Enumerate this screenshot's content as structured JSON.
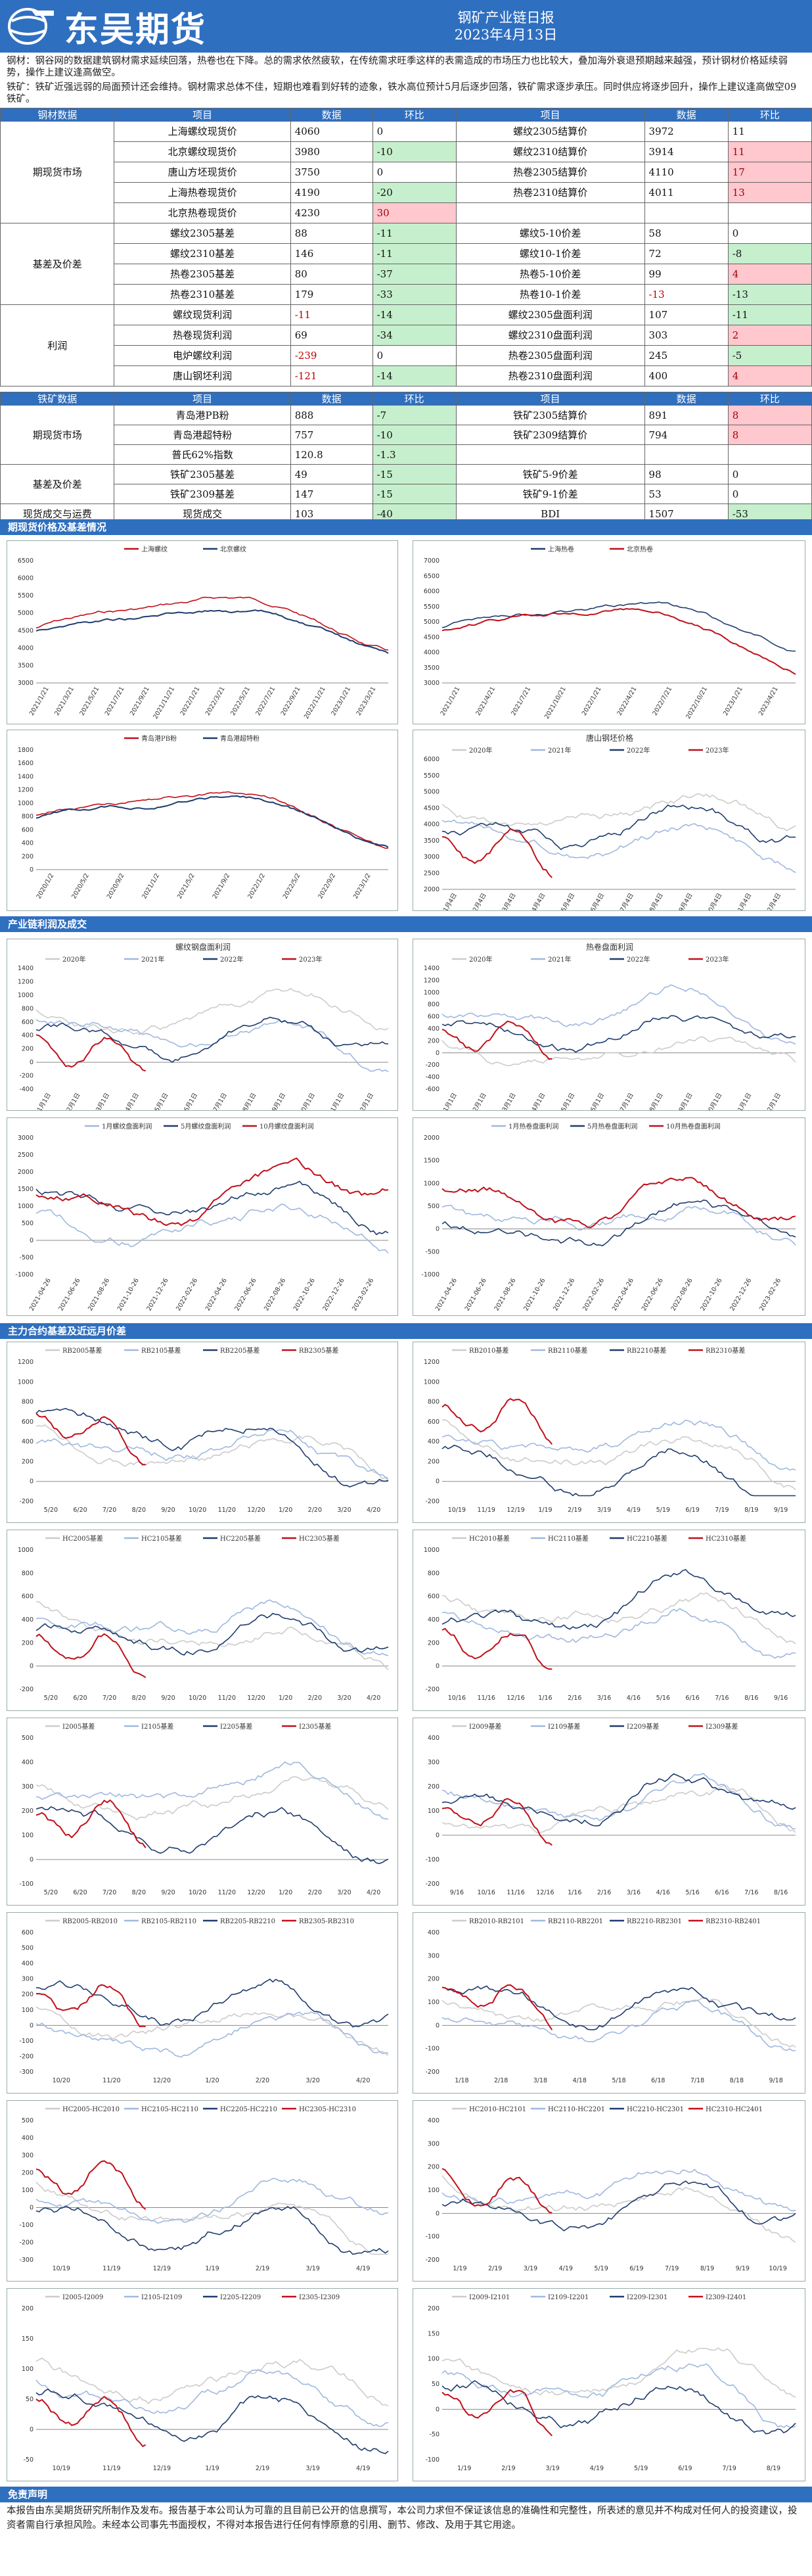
{
  "header": {
    "logo_text": "东吴期货",
    "title": "钢矿产业链日报",
    "date": "2023年4月13日"
  },
  "summary": {
    "steel": "钢材：钢谷网的数据建筑钢材需求延续回落，热卷也在下降。总的需求依然疲软，在传统需求旺季这样的表需造成的市场压力也比较大，叠加海外衰退预期越来越强，预计钢材价格延续弱势，操作上建议逢高做空。",
    "ore": "铁矿：铁矿近强远弱的局面预计还会维持。钢材需求总体不佳，短期也难看到好转的迹象，铁水高位预计5月后逐步回落，铁矿需求逐步承压。同时供应将逐步回升，操作上建议逢高做空09铁矿。"
  },
  "steel_table": {
    "headers": [
      "钢材数据",
      "项目",
      "数据",
      "环比",
      "项目",
      "数据",
      "环比"
    ],
    "groups": [
      {
        "name": "期现货市场",
        "rows": [
          [
            "上海螺纹现货价",
            "4060",
            "0",
            "螺纹2305结算价",
            "3972",
            "11"
          ],
          [
            "北京螺纹现货价",
            "3980",
            "-10",
            "螺纹2310结算价",
            "3914",
            "11"
          ],
          [
            "唐山方坯现货价",
            "3750",
            "0",
            "热卷2305结算价",
            "4110",
            "17"
          ],
          [
            "上海热卷现货价",
            "4190",
            "-20",
            "热卷2310结算价",
            "4011",
            "13"
          ],
          [
            "北京热卷现货价",
            "4230",
            "30",
            "",
            "",
            ""
          ]
        ]
      },
      {
        "name": "基差及价差",
        "rows": [
          [
            "螺纹2305基差",
            "88",
            "-11",
            "螺纹5-10价差",
            "58",
            "0"
          ],
          [
            "螺纹2310基差",
            "146",
            "-11",
            "螺纹10-1价差",
            "72",
            "-8"
          ],
          [
            "热卷2305基差",
            "80",
            "-37",
            "热卷5-10价差",
            "99",
            "4"
          ],
          [
            "热卷2310基差",
            "179",
            "-33",
            "热卷10-1价差",
            "-13",
            "-13"
          ]
        ]
      },
      {
        "name": "利润",
        "rows": [
          [
            "螺纹现货利润",
            "-11",
            "-14",
            "螺纹2305盘面利润",
            "107",
            "-11"
          ],
          [
            "热卷现货利润",
            "69",
            "-34",
            "螺纹2310盘面利润",
            "303",
            "2"
          ],
          [
            "电炉螺纹利润",
            "-239",
            "0",
            "热卷2305盘面利润",
            "245",
            "-5"
          ],
          [
            "唐山钢坯利润",
            "-121",
            "-14",
            "热卷2310盘面利润",
            "400",
            "4"
          ]
        ]
      }
    ],
    "tints": [
      [
        "",
        "",
        "",
        "",
        ""
      ],
      [
        "",
        "g",
        "",
        "",
        "r"
      ],
      [
        "",
        "",
        "",
        "",
        "r"
      ],
      [
        "",
        "g",
        "",
        "",
        "r"
      ],
      [
        "",
        "r",
        "",
        "",
        ""
      ],
      [
        "",
        "g",
        "",
        "",
        ""
      ],
      [
        "",
        "g",
        "",
        "",
        "g"
      ],
      [
        "",
        "g",
        "",
        "",
        "r"
      ],
      [
        "",
        "g",
        "",
        "",
        "g"
      ],
      [
        "",
        "g",
        "",
        "",
        "g"
      ],
      [
        "",
        "g",
        "",
        "",
        "r"
      ],
      [
        "",
        "",
        "",
        "",
        "g"
      ],
      [
        "",
        "g",
        "",
        "",
        "r"
      ]
    ]
  },
  "ore_table": {
    "headers": [
      "铁矿数据",
      "项目",
      "数据",
      "环比",
      "项目",
      "数据",
      "环比"
    ],
    "groups": [
      {
        "name": "期现货市场",
        "rows": [
          [
            "青岛港PB粉",
            "888",
            "-7",
            "铁矿2305结算价",
            "891",
            "8"
          ],
          [
            "青岛港超特粉",
            "757",
            "-10",
            "铁矿2309结算价",
            "794",
            "8"
          ],
          [
            "普氏62%指数",
            "120.8",
            "-1.3",
            "",
            "",
            ""
          ]
        ]
      },
      {
        "name": "基差及价差",
        "rows": [
          [
            "铁矿2305基差",
            "49",
            "-15",
            "铁矿5-9价差",
            "98",
            "0"
          ],
          [
            "铁矿2309基差",
            "147",
            "-15",
            "铁矿9-1价差",
            "53",
            "0"
          ]
        ]
      },
      {
        "name": "现货成交与运费",
        "rows": [
          [
            "现货成交",
            "103",
            "-40",
            "BDI",
            "1507",
            "-53"
          ]
        ]
      }
    ],
    "tints": [
      [
        "",
        "g",
        "",
        "",
        "r"
      ],
      [
        "",
        "g",
        "",
        "",
        "r"
      ],
      [
        "",
        "g",
        "",
        "",
        ""
      ],
      [
        "",
        "g",
        "",
        "",
        ""
      ],
      [
        "",
        "g",
        "",
        "",
        ""
      ],
      [
        "",
        "g",
        "",
        "",
        "g"
      ]
    ]
  },
  "sections": {
    "s1": "期现货价格及基差情况",
    "s2": "产业链利润及成交",
    "s3": "主力合约基差及近远月价差",
    "s4": "免责声明"
  },
  "footer": "本报告由东吴期货研究所制作及发布。报告基于本公司认为可靠的且目前已公开的信息撰写，本公司力求但不保证该信息的准确性和完整性，所表述的意见并不构成对任何人的投资建议，投资者需自行承担风险。未经本公司事先书面授权，不得对本报告进行任何有悖原意的引用、删节、修改、及用于其它用途。",
  "colors": {
    "blue": "#3b78c2",
    "red": "#c0101a",
    "navy": "#1f3b6e",
    "light": "#9fb8df",
    "gray": "#cccccc"
  },
  "charts": [
    {
      "legend": [
        "上海螺纹",
        "北京螺纹"
      ],
      "colors": [
        "red",
        "navy"
      ],
      "kind": "price",
      "ymin": 3000,
      "ymax": 6500,
      "yticks": [
        "6500",
        "6000",
        "5500",
        "5000",
        "4500",
        "4000",
        "3500",
        "3000"
      ],
      "xticks": [
        "2021/1/21",
        "2021/3/21",
        "2021/5/21",
        "2021/7/21",
        "2021/9/21",
        "2021/11/21",
        "2022/1/21",
        "2022/3/21",
        "2022/5/21",
        "2022/7/21",
        "2022/9/21",
        "2022/11/21",
        "2023/1/21",
        "2023/3/21"
      ]
    },
    {
      "legend": [
        "上海热卷",
        "北京热卷"
      ],
      "colors": [
        "navy",
        "red"
      ],
      "kind": "price",
      "ymin": 3000,
      "ymax": 7000,
      "yticks": [
        "7000",
        "6500",
        "6000",
        "5500",
        "5000",
        "4500",
        "4000",
        "3500",
        "3000"
      ],
      "xticks": [
        "2021/1/21",
        "2021/4/21",
        "2021/7/21",
        "2021/10/21",
        "2022/1/21",
        "2022/4/21",
        "2022/7/21",
        "2022/10/21",
        "2023/1/21",
        "2023/4/21"
      ]
    },
    {
      "legend": [
        "青岛港PB粉",
        "青岛港超特粉"
      ],
      "colors": [
        "red",
        "navy"
      ],
      "kind": "ore",
      "ymin": 0,
      "ymax": 1800,
      "yticks": [
        "1800",
        "1600",
        "1400",
        "1200",
        "1000",
        "800",
        "600",
        "400",
        "200",
        "0"
      ],
      "xticks": [
        "2020/1/2",
        "2020/5/2",
        "2020/9/2",
        "2021/1/2",
        "2021/5/2",
        "2021/9/2",
        "2022/1/2",
        "2022/5/2",
        "2022/9/2",
        "2023/1/2"
      ]
    },
    {
      "title": "唐山钢坯价格",
      "legend": [
        "2020年",
        "2021年",
        "2022年",
        "2023年"
      ],
      "colors": [
        "gray",
        "light",
        "navy",
        "red"
      ],
      "kind": "season",
      "ymin": 2000,
      "ymax": 6000,
      "yticks": [
        "6000",
        "5500",
        "5000",
        "4500",
        "4000",
        "3500",
        "3000",
        "2500",
        "2000"
      ],
      "xticks": [
        "1月4日",
        "2月4日",
        "3月4日",
        "4月4日",
        "5月4日",
        "6月4日",
        "7月4日",
        "8月4日",
        "9月4日",
        "10月4日",
        "11月4日",
        "12月4日"
      ]
    },
    {
      "title": "螺纹钢盘面利润",
      "legend": [
        "2020年",
        "2021年",
        "2022年",
        "2023年"
      ],
      "colors": [
        "gray",
        "light",
        "navy",
        "red"
      ],
      "kind": "season",
      "ymin": -400,
      "ymax": 1400,
      "yticks": [
        "1400",
        "1200",
        "1000",
        "800",
        "600",
        "400",
        "200",
        "0",
        "-200",
        "-400"
      ],
      "xticks": [
        "1月1日",
        "2月1日",
        "3月1日",
        "4月1日",
        "5月1日",
        "6月1日",
        "7月1日",
        "8月1日",
        "9月1日",
        "10月1日",
        "11月1日",
        "12月1日"
      ]
    },
    {
      "title": "热卷盘面利润",
      "legend": [
        "2020年",
        "2021年",
        "2022年",
        "2023年"
      ],
      "colors": [
        "gray",
        "light",
        "navy",
        "red"
      ],
      "kind": "season",
      "ymin": -600,
      "ymax": 1400,
      "yticks": [
        "1400",
        "1200",
        "1000",
        "800",
        "600",
        "400",
        "200",
        "0",
        "-200",
        "-400",
        "-600"
      ],
      "xticks": [
        "1月1日",
        "2月1日",
        "3月1日",
        "4月1日",
        "5月1日",
        "6月1日",
        "7月1日",
        "8月1日",
        "9月1日",
        "10月1日",
        "11月1日",
        "12月1日"
      ]
    },
    {
      "legend": [
        "1月螺纹盘面利润",
        "5月螺纹盘面利润",
        "10月螺纹盘面利润"
      ],
      "colors": [
        "light",
        "navy",
        "red"
      ],
      "kind": "profit",
      "ymin": -1000,
      "ymax": 3000,
      "yticks": [
        "3000",
        "2500",
        "2000",
        "1500",
        "1000",
        "500",
        "0",
        "-500",
        "-1000"
      ],
      "xticks": [
        "2021-04-26",
        "2021-06-26",
        "2021-08-26",
        "2021-10-26",
        "2021-12-26",
        "2022-02-26",
        "2022-04-26",
        "2022-06-26",
        "2022-08-26",
        "2022-10-26",
        "2022-12-26",
        "2023-02-26"
      ]
    },
    {
      "legend": [
        "1月热卷盘面利润",
        "5月热卷盘面利润",
        "10月热卷盘面利润"
      ],
      "colors": [
        "light",
        "navy",
        "red"
      ],
      "kind": "profit",
      "ymin": -1000,
      "ymax": 2000,
      "yticks": [
        "2000",
        "1500",
        "1000",
        "500",
        "0",
        "-500",
        "-1000"
      ],
      "xticks": [
        "2021-04-26",
        "2021-06-26",
        "2021-08-26",
        "2021-10-26",
        "2021-12-26",
        "2022-02-26",
        "2022-04-26",
        "2022-06-26",
        "2022-08-26",
        "2022-10-26",
        "2022-12-26",
        "2023-02-26"
      ]
    },
    {
      "legend": [
        "RB2005基差",
        "RB2105基差",
        "RB2205基差",
        "RB2305基差"
      ],
      "colors": [
        "gray",
        "light",
        "navy",
        "red"
      ],
      "kind": "basis",
      "ymin": -200,
      "ymax": 1200,
      "yticks": [
        "1200",
        "1000",
        "800",
        "600",
        "400",
        "200",
        "0",
        "-200"
      ],
      "xticks": [
        "5/20",
        "6/20",
        "7/20",
        "8/20",
        "9/20",
        "10/20",
        "11/20",
        "12/20",
        "1/20",
        "2/20",
        "3/20",
        "4/20"
      ]
    },
    {
      "legend": [
        "RB2010基差",
        "RB2110基差",
        "RB2210基差",
        "RB2310基差"
      ],
      "colors": [
        "gray",
        "light",
        "navy",
        "red"
      ],
      "kind": "basis",
      "ymin": -200,
      "ymax": 1200,
      "yticks": [
        "1200",
        "1000",
        "800",
        "600",
        "400",
        "200",
        "0",
        "-200"
      ],
      "xticks": [
        "10/19",
        "11/19",
        "12/19",
        "1/19",
        "2/19",
        "3/19",
        "4/19",
        "5/19",
        "6/19",
        "7/19",
        "8/19",
        "9/19"
      ]
    },
    {
      "legend": [
        "HC2005基差",
        "HC2105基差",
        "HC2205基差",
        "HC2305基差"
      ],
      "colors": [
        "gray",
        "light",
        "navy",
        "red"
      ],
      "kind": "basis",
      "ymin": -200,
      "ymax": 1000,
      "yticks": [
        "1000",
        "800",
        "600",
        "400",
        "200",
        "0",
        "-200"
      ],
      "xticks": [
        "5/20",
        "6/20",
        "7/20",
        "8/20",
        "9/20",
        "10/20",
        "11/20",
        "12/20",
        "1/20",
        "2/20",
        "3/20",
        "4/20"
      ]
    },
    {
      "legend": [
        "HC2010基差",
        "HC2110基差",
        "HC2210基差",
        "HC2310基差"
      ],
      "colors": [
        "gray",
        "light",
        "navy",
        "red"
      ],
      "kind": "basis",
      "ymin": -200,
      "ymax": 1000,
      "yticks": [
        "1000",
        "800",
        "600",
        "400",
        "200",
        "0",
        "-200"
      ],
      "xticks": [
        "10/16",
        "11/16",
        "12/16",
        "1/16",
        "2/16",
        "3/16",
        "4/16",
        "5/16",
        "6/16",
        "7/16",
        "8/16",
        "9/16"
      ]
    },
    {
      "legend": [
        "I2005基差",
        "I2105基差",
        "I2205基差",
        "I2305基差"
      ],
      "colors": [
        "gray",
        "light",
        "navy",
        "red"
      ],
      "kind": "basis",
      "ymin": -100,
      "ymax": 500,
      "yticks": [
        "500",
        "400",
        "300",
        "200",
        "100",
        "0",
        "-100"
      ],
      "xticks": [
        "5/20",
        "6/20",
        "7/20",
        "8/20",
        "9/20",
        "10/20",
        "11/20",
        "12/20",
        "1/20",
        "2/20",
        "3/20",
        "4/20"
      ]
    },
    {
      "legend": [
        "I2009基差",
        "I2109基差",
        "I2209基差",
        "I2309基差"
      ],
      "colors": [
        "gray",
        "light",
        "navy",
        "red"
      ],
      "kind": "basis",
      "ymin": -200,
      "ymax": 400,
      "yticks": [
        "400",
        "300",
        "200",
        "100",
        "0",
        "-100",
        "-200"
      ],
      "xticks": [
        "9/16",
        "10/16",
        "11/16",
        "12/16",
        "1/16",
        "2/16",
        "3/16",
        "4/16",
        "5/16",
        "6/16",
        "7/16",
        "8/16"
      ]
    },
    {
      "legend": [
        "RB2005-RB2010",
        "RB2105-RB2110",
        "RB2205-RB2210",
        "RB2305-RB2310"
      ],
      "colors": [
        "gray",
        "light",
        "navy",
        "red"
      ],
      "kind": "spread",
      "ymin": -300,
      "ymax": 600,
      "yticks": [
        "600",
        "500",
        "400",
        "300",
        "200",
        "100",
        "0",
        "-100",
        "-200",
        "-300"
      ],
      "xticks": [
        "10/20",
        "11/20",
        "12/20",
        "1/20",
        "2/20",
        "3/20",
        "4/20"
      ]
    },
    {
      "legend": [
        "RB2010-RB2101",
        "RB2110-RB2201",
        "RB2210-RB2301",
        "RB2310-RB2401"
      ],
      "colors": [
        "gray",
        "light",
        "navy",
        "red"
      ],
      "kind": "spread",
      "ymin": -200,
      "ymax": 400,
      "yticks": [
        "400",
        "300",
        "200",
        "100",
        "0",
        "-100",
        "-200"
      ],
      "xticks": [
        "1/18",
        "2/18",
        "3/18",
        "4/18",
        "5/18",
        "6/18",
        "7/18",
        "8/18",
        "9/18"
      ]
    },
    {
      "legend": [
        "HC2005-HC2010",
        "HC2105-HC2110",
        "HC2205-HC2210",
        "HC2305-HC2310"
      ],
      "colors": [
        "gray",
        "light",
        "navy",
        "red"
      ],
      "kind": "spread",
      "ymin": -300,
      "ymax": 500,
      "yticks": [
        "500",
        "400",
        "300",
        "200",
        "100",
        "0",
        "-100",
        "-200",
        "-300"
      ],
      "xticks": [
        "10/19",
        "11/19",
        "12/19",
        "1/19",
        "2/19",
        "3/19",
        "4/19"
      ]
    },
    {
      "legend": [
        "HC2010-HC2101",
        "HC2110-HC2201",
        "HC2210-HC2301",
        "HC2310-HC2401"
      ],
      "colors": [
        "gray",
        "light",
        "navy",
        "red"
      ],
      "kind": "spread",
      "ymin": -200,
      "ymax": 400,
      "yticks": [
        "400",
        "300",
        "200",
        "100",
        "0",
        "-100",
        "-200"
      ],
      "xticks": [
        "1/19",
        "2/19",
        "3/19",
        "4/19",
        "5/19",
        "6/19",
        "7/19",
        "8/19",
        "9/19",
        "10/19"
      ]
    },
    {
      "legend": [
        "I2005-I2009",
        "I2105-I2109",
        "I2205-I2209",
        "I2305-I2309"
      ],
      "colors": [
        "gray",
        "light",
        "navy",
        "red"
      ],
      "kind": "spread",
      "ymin": -50,
      "ymax": 200,
      "yticks": [
        "200",
        "150",
        "100",
        "50",
        "0",
        "-50"
      ],
      "xticks": [
        "10/19",
        "11/19",
        "12/19",
        "1/19",
        "2/19",
        "3/19",
        "4/19"
      ]
    },
    {
      "legend": [
        "I2009-I2101",
        "I2109-I2201",
        "I2209-I2301",
        "I2309-I2401"
      ],
      "colors": [
        "gray",
        "light",
        "navy",
        "red"
      ],
      "kind": "spread",
      "ymin": -100,
      "ymax": 200,
      "yticks": [
        "200",
        "150",
        "100",
        "50",
        "0",
        "-50",
        "-100"
      ],
      "xticks": [
        "1/19",
        "2/19",
        "3/19",
        "4/19",
        "5/19",
        "6/19",
        "7/19",
        "8/19"
      ]
    }
  ]
}
